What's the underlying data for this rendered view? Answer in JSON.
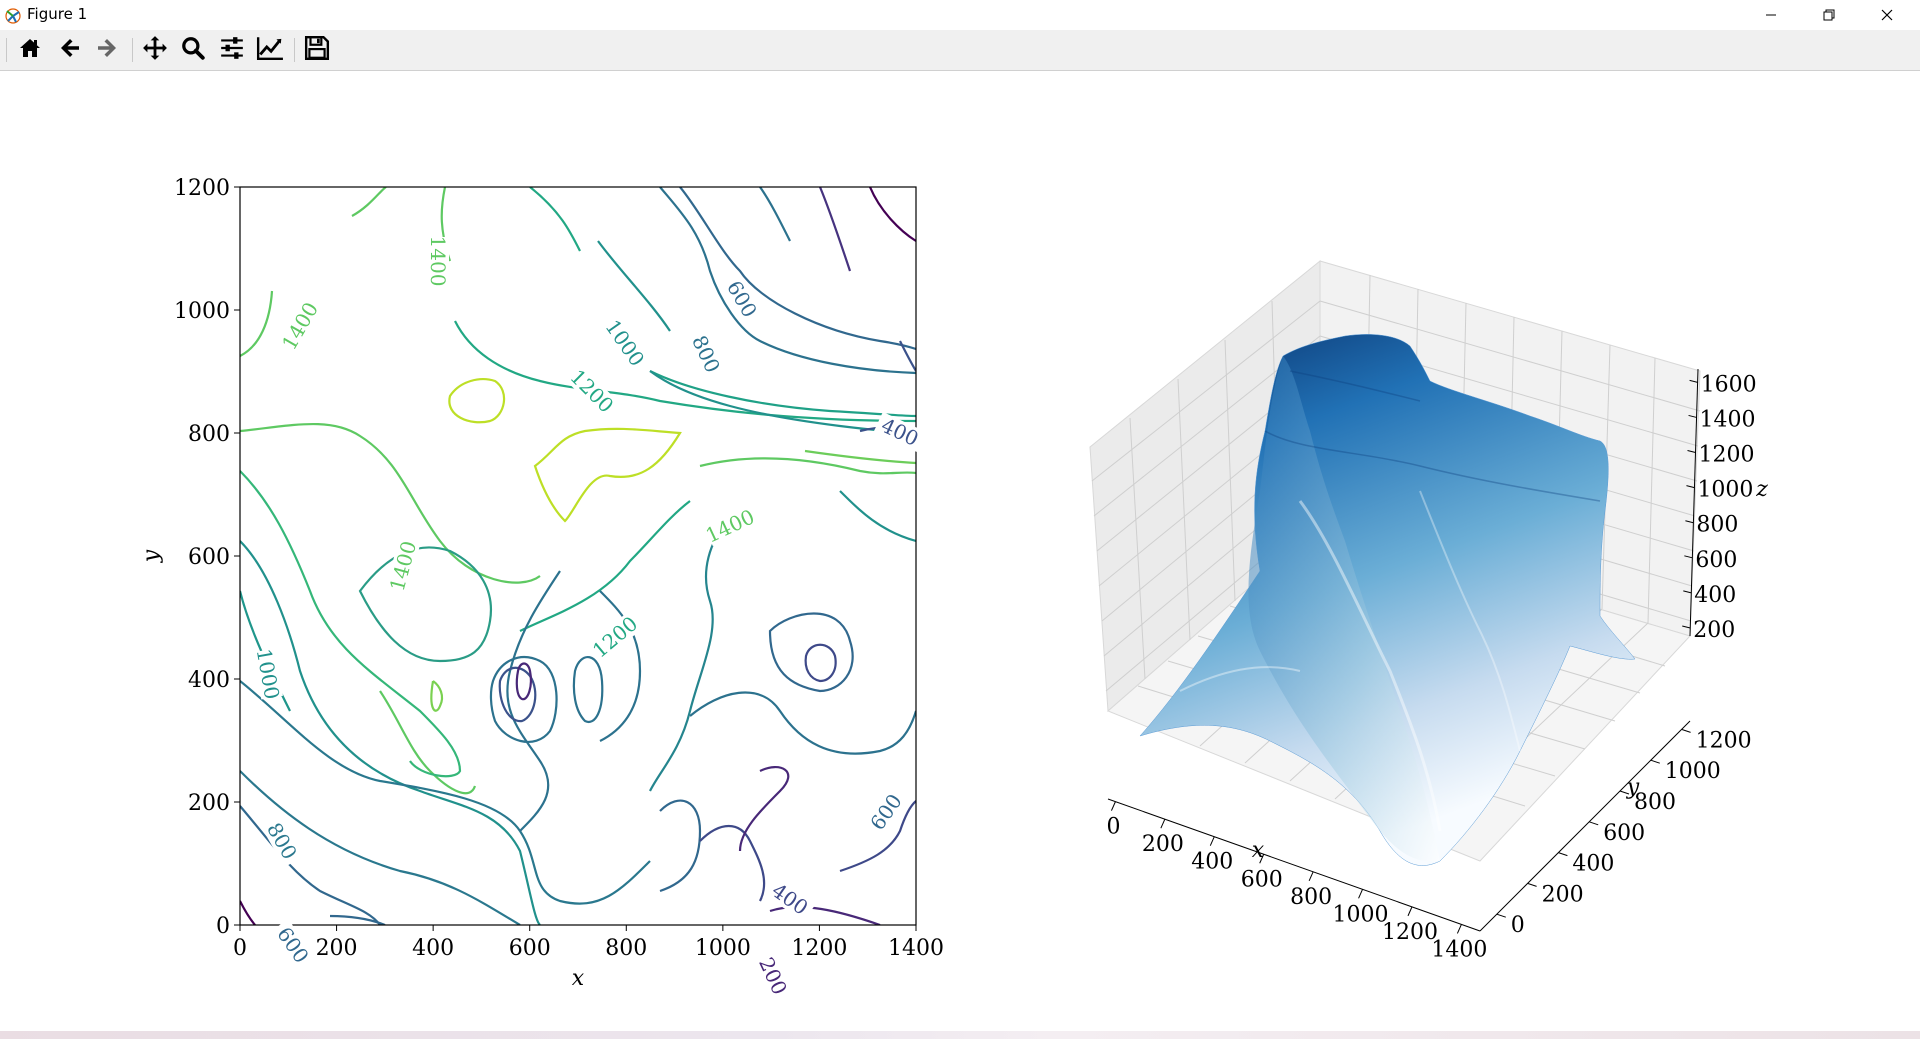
{
  "window": {
    "title": "Figure 1",
    "app_icon": "matplotlib-icon",
    "buttons": [
      "minimize-icon",
      "restore-icon",
      "close-icon"
    ]
  },
  "toolbar": {
    "buttons": [
      {
        "name": "home-button",
        "icon": "home-icon",
        "tooltip": "Reset original view"
      },
      {
        "name": "back-button",
        "icon": "arrow-left-icon",
        "tooltip": "Back"
      },
      {
        "name": "forward-button",
        "icon": "arrow-right-icon",
        "tooltip": "Forward"
      },
      {
        "name": "pan-button",
        "icon": "move-icon",
        "tooltip": "Pan"
      },
      {
        "name": "zoom-button",
        "icon": "magnifier-icon",
        "tooltip": "Zoom"
      },
      {
        "name": "subplots-button",
        "icon": "sliders-icon",
        "tooltip": "Configure subplots"
      },
      {
        "name": "axes-button",
        "icon": "line-chart-icon",
        "tooltip": "Edit axis"
      },
      {
        "name": "save-button",
        "icon": "floppy-icon",
        "tooltip": "Save"
      }
    ]
  },
  "chart_data": [
    {
      "type": "contour",
      "xlabel": "x",
      "ylabel": "y",
      "xlim": [
        0,
        1400
      ],
      "ylim": [
        0,
        1200
      ],
      "xticks": [
        "0",
        "200",
        "400",
        "600",
        "800",
        "1000",
        "1200",
        "1400"
      ],
      "yticks": [
        "0",
        "200",
        "400",
        "600",
        "800",
        "1000",
        "1200"
      ],
      "colormap": "viridis",
      "contour_labels": [
        "1400",
        "1400",
        "1000",
        "1200",
        "800",
        "600",
        "400",
        "1400",
        "1400",
        "1200",
        "1000",
        "800",
        "600",
        "600",
        "400",
        "200"
      ]
    },
    {
      "type": "surface3d",
      "xlabel": "x",
      "ylabel": "y",
      "zlabel": "z",
      "xticks": [
        "0",
        "200",
        "400",
        "600",
        "800",
        "1000",
        "1200",
        "1400"
      ],
      "yticks": [
        "0",
        "200",
        "400",
        "600",
        "800",
        "1000",
        "1200"
      ],
      "zticks": [
        "200",
        "400",
        "600",
        "800",
        "1000",
        "1200",
        "1400",
        "1600"
      ],
      "colormap": "Blues",
      "grid": true
    }
  ]
}
